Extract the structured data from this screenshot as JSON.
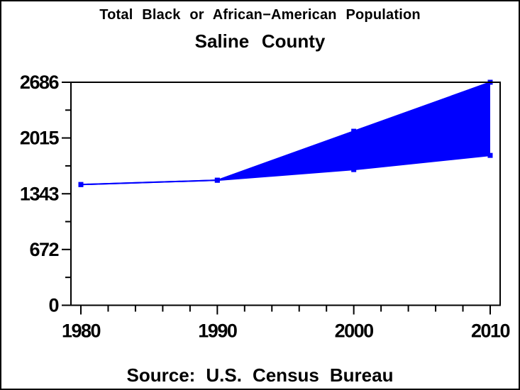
{
  "chart_data": {
    "type": "area",
    "title": "Total Black or African−American Population",
    "subtitle": "Saline County",
    "footnote": "Source: U.S. Census Bureau",
    "x": [
      1980,
      1990,
      2000,
      2010
    ],
    "xticks": [
      1980,
      1990,
      2000,
      2010
    ],
    "x_minor_step": 2,
    "yticks": [
      0,
      672,
      1343,
      2015,
      2686
    ],
    "xlim": [
      1980,
      2010
    ],
    "ylim": [
      0,
      2686
    ],
    "grid": false,
    "legend": "none",
    "fill_between_series": true,
    "series": [
      {
        "name": "upper",
        "values": [
          1454,
          1506,
          2096,
          2686
        ]
      },
      {
        "name": "lower",
        "values": [
          1454,
          1506,
          1634,
          1805
        ]
      }
    ],
    "series_color": "#0000FF",
    "axis_color": "#000000",
    "background": "#FFFFFF"
  }
}
